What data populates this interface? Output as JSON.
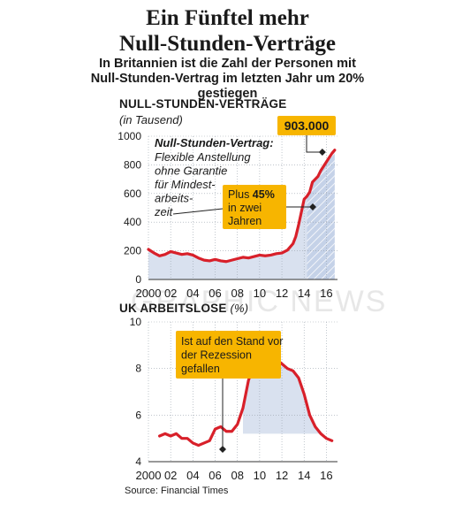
{
  "title_line1": "Ein Fünftel mehr",
  "title_line2": "Null-Stunden-Verträge",
  "subtitle": "In Britannien ist die Zahl der Personen mit Null-Stunden-Vertrag im letzten Jahr um 20% gestiegen",
  "source": "Source: Financial Times",
  "watermark": "GRAPHIC NEWS",
  "colors": {
    "line": "#d8202a",
    "panel": "#d9e1ef",
    "highlight": "#c5d2e8",
    "callout": "#f7b500",
    "grid": "#9aa3ad"
  },
  "chart_data": [
    {
      "type": "line",
      "title": "NULL-STUNDEN-VERTRÄGE",
      "unit": "(in Tausend)",
      "ylim": [
        0,
        1000
      ],
      "yticks": [
        "0",
        "200",
        "400",
        "600",
        "800",
        "1000"
      ],
      "xticks": [
        "2000",
        "02",
        "04",
        "06",
        "08",
        "10",
        "12",
        "14",
        "16"
      ],
      "xlim": [
        2000,
        2017
      ],
      "grid": true,
      "series": [
        {
          "x": [
            2000.0,
            2000.5,
            2001.0,
            2001.5,
            2002.0,
            2002.5,
            2003.0,
            2003.5,
            2004.0,
            2004.5,
            2005.0,
            2005.5,
            2006.0,
            2006.5,
            2007.0,
            2007.5,
            2008.0,
            2008.5,
            2009.0,
            2009.5,
            2010.0,
            2010.5,
            2011.0,
            2011.5,
            2012.0,
            2012.5,
            2013.0,
            2013.25,
            2013.5,
            2013.75,
            2014.0,
            2014.25,
            2014.5,
            2014.75,
            2015.0,
            2015.25,
            2015.5,
            2015.75,
            2016.0,
            2016.25,
            2016.5,
            2016.75
          ],
          "values": [
            210,
            185,
            165,
            175,
            195,
            185,
            175,
            180,
            170,
            150,
            135,
            130,
            140,
            130,
            125,
            135,
            145,
            155,
            150,
            160,
            170,
            165,
            170,
            180,
            185,
            205,
            250,
            300,
            380,
            470,
            560,
            580,
            610,
            680,
            700,
            720,
            760,
            790,
            820,
            850,
            880,
            903
          ]
        }
      ],
      "highlight_range": [
        2014.25,
        2016.75
      ],
      "annotations": {
        "value_label": "903.000",
        "definition_bold": "Null-Stunden-Vertrag:",
        "definition_lines": [
          "Flexible Anstellung",
          "ohne Garantie",
          "für Mindest-",
          "arbeits-",
          "zeit"
        ],
        "callout_lines": [
          "Plus ",
          "45%",
          "in zwei",
          "Jahren"
        ]
      }
    },
    {
      "type": "line",
      "title": "UK ARBEITSLOSE",
      "unit": "(%)",
      "ylim": [
        4,
        10
      ],
      "yticks": [
        "4",
        "6",
        "8",
        "10"
      ],
      "xticks": [
        "2000",
        "02",
        "04",
        "06",
        "08",
        "10",
        "12",
        "14",
        "16"
      ],
      "xlim": [
        2000,
        2017
      ],
      "grid": true,
      "series": [
        {
          "x": [
            2001.0,
            2001.5,
            2002.0,
            2002.5,
            2003.0,
            2003.5,
            2004.0,
            2004.5,
            2005.0,
            2005.5,
            2006.0,
            2006.5,
            2007.0,
            2007.5,
            2008.0,
            2008.5,
            2009.0,
            2009.25,
            2009.5,
            2010.0,
            2010.5,
            2011.0,
            2011.5,
            2011.75,
            2012.0,
            2012.5,
            2013.0,
            2013.5,
            2014.0,
            2014.5,
            2015.0,
            2015.5,
            2016.0,
            2016.5
          ],
          "values": [
            5.1,
            5.2,
            5.1,
            5.2,
            5.0,
            5.0,
            4.8,
            4.7,
            4.8,
            4.9,
            5.4,
            5.5,
            5.3,
            5.3,
            5.6,
            6.3,
            7.5,
            7.8,
            7.9,
            7.9,
            7.9,
            7.8,
            8.0,
            8.3,
            8.2,
            8.0,
            7.9,
            7.6,
            6.9,
            6.0,
            5.5,
            5.2,
            5.0,
            4.9
          ]
        }
      ],
      "fill_baseline": 5.2,
      "annotations": {
        "callout_lines": [
          "Ist auf den Stand vor",
          "der Rezession",
          "gefallen"
        ]
      }
    }
  ]
}
